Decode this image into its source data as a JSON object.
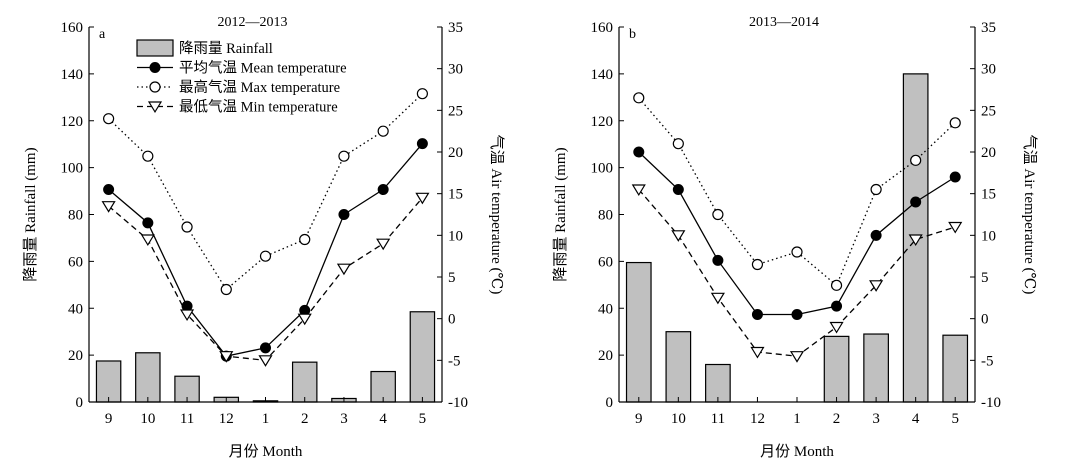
{
  "chart_data": [
    {
      "type": "bar+line",
      "panel_label": "a",
      "title": "2012—2013",
      "xlabel": "月份 Month",
      "ylabel_left": "降雨量 Rainfall (mm)",
      "ylabel_right": "气温 Air temperature (℃)",
      "categories": [
        "9",
        "10",
        "11",
        "12",
        "1",
        "2",
        "3",
        "4",
        "5"
      ],
      "ylim_left": [
        0,
        160
      ],
      "yticks_left": [
        0,
        20,
        40,
        60,
        80,
        100,
        120,
        140,
        160
      ],
      "ylim_right": [
        -10,
        35
      ],
      "yticks_right": [
        -10,
        -5,
        0,
        5,
        10,
        15,
        20,
        25,
        30,
        35
      ],
      "rainfall": {
        "name": "降雨量 Rainfall",
        "values": [
          17.5,
          21,
          11,
          2,
          0.5,
          17,
          1.5,
          13,
          38.5
        ]
      },
      "series": [
        {
          "name": "平均气温 Mean temperature",
          "axis": "right",
          "style": "solid",
          "marker": "filled-circle",
          "values": [
            15.5,
            11.5,
            1.5,
            -4.5,
            -3.5,
            1,
            12.5,
            15.5,
            21
          ]
        },
        {
          "name": "最高气温 Max temperature",
          "axis": "right",
          "style": "dotted",
          "marker": "open-circle",
          "values": [
            24,
            19.5,
            11,
            3.5,
            7.5,
            9.5,
            19.5,
            22.5,
            27
          ]
        },
        {
          "name": "最低气温 Min temperature",
          "axis": "right",
          "style": "dashed",
          "marker": "open-triangle-down",
          "values": [
            13.5,
            9.5,
            0.5,
            -4.5,
            -5,
            0,
            6,
            9,
            14.5
          ]
        }
      ],
      "legend_placement": "top-left"
    },
    {
      "type": "bar+line",
      "panel_label": "b",
      "title": "2013—2014",
      "xlabel": "月份 Month",
      "ylabel_left": "降雨量 Rainfall (mm)",
      "ylabel_right": "气温 Air temperature (℃)",
      "categories": [
        "9",
        "10",
        "11",
        "12",
        "1",
        "2",
        "3",
        "4",
        "5"
      ],
      "ylim_left": [
        0,
        160
      ],
      "yticks_left": [
        0,
        20,
        40,
        60,
        80,
        100,
        120,
        140,
        160
      ],
      "ylim_right": [
        -10,
        35
      ],
      "yticks_right": [
        -10,
        -5,
        0,
        5,
        10,
        15,
        20,
        25,
        30,
        35
      ],
      "rainfall": {
        "name": "降雨量 Rainfall",
        "values": [
          59.5,
          30,
          16,
          0,
          0,
          28,
          29,
          140,
          28.5
        ]
      },
      "series": [
        {
          "name": "平均气温 Mean temperature",
          "axis": "right",
          "style": "solid",
          "marker": "filled-circle",
          "values": [
            20,
            15.5,
            7,
            0.5,
            0.5,
            1.5,
            10,
            14,
            17
          ]
        },
        {
          "name": "最高气温 Max temperature",
          "axis": "right",
          "style": "dotted",
          "marker": "open-circle",
          "values": [
            26.5,
            21,
            12.5,
            6.5,
            8,
            4,
            15.5,
            19,
            23.5
          ]
        },
        {
          "name": "最低气温 Min temperature",
          "axis": "right",
          "style": "dashed",
          "marker": "open-triangle-down",
          "values": [
            15.5,
            10,
            2.5,
            -4,
            -4.5,
            -1,
            4,
            9.5,
            11
          ]
        }
      ]
    }
  ],
  "colors": {
    "bar_fill": "#c0c0c0",
    "stroke": "#000000",
    "background": "#ffffff"
  }
}
